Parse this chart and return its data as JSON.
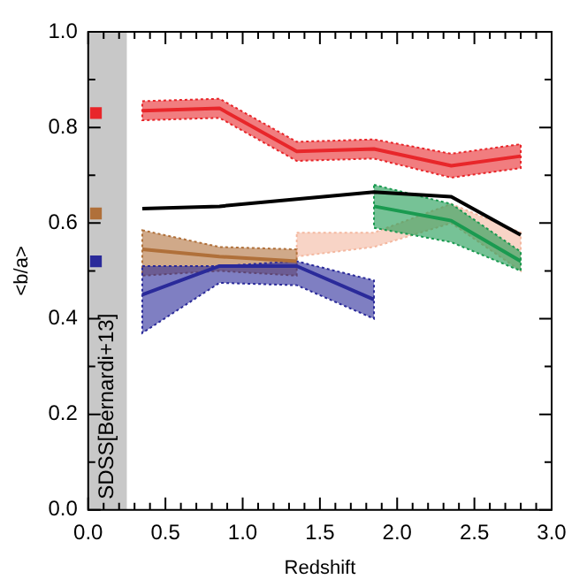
{
  "chart_data": {
    "type": "line",
    "xlabel": "Redshift",
    "ylabel": "<b/a>",
    "xlim": [
      0,
      3
    ],
    "ylim": [
      0,
      1
    ],
    "xticks": [
      {
        "value": 0,
        "label": "0.0"
      },
      0.5,
      {
        "value": 1,
        "label": "1.0"
      },
      1.5,
      {
        "value": 2,
        "label": "2.0"
      },
      2.5,
      {
        "value": 3,
        "label": "3.0"
      }
    ],
    "yticks": [
      {
        "value": 0,
        "label": "0.0"
      },
      0.2,
      0.4,
      0.6,
      0.8,
      {
        "value": 1,
        "label": "1.0"
      }
    ],
    "grid": false,
    "legend": false,
    "marker": "none",
    "line_style": "solid",
    "bands": [
      {
        "axis": "x",
        "from": 0,
        "to": 0.25,
        "label": "SDSS[Bernardi+13]",
        "color": "#c8c8c8"
      }
    ],
    "series": [
      {
        "color": "#e8262a",
        "x": [
          0.35,
          0.85,
          1.35,
          1.85,
          2.35,
          2.8
        ],
        "values": [
          0.835,
          0.84,
          0.75,
          0.755,
          0.72,
          0.74
        ],
        "lower": [
          0.815,
          0.82,
          0.73,
          0.735,
          0.695,
          0.715
        ],
        "upper": [
          0.855,
          0.86,
          0.77,
          0.775,
          0.745,
          0.765
        ]
      },
      {
        "color": "#f4b8a0",
        "x": [
          1.35,
          1.85,
          2.35,
          2.8
        ],
        "values": [
          null,
          null,
          null,
          null
        ],
        "lower": [
          0.53,
          0.55,
          0.6,
          0.5
        ],
        "upper": [
          0.58,
          0.58,
          0.64,
          0.58
        ]
      },
      {
        "color": "#b0703a",
        "x": [
          0.35,
          0.85,
          1.35
        ],
        "values": [
          0.545,
          0.53,
          0.52
        ],
        "lower": [
          0.49,
          0.5,
          0.49
        ],
        "upper": [
          0.585,
          0.55,
          0.545
        ]
      },
      {
        "color": "#2a2a9a",
        "x": [
          0.35,
          0.85,
          1.35,
          1.85
        ],
        "values": [
          0.45,
          0.51,
          0.51,
          0.44
        ],
        "lower": [
          0.37,
          0.475,
          0.47,
          0.4
        ],
        "upper": [
          0.51,
          0.51,
          0.52,
          0.48
        ]
      },
      {
        "color": "#1a9a50",
        "x": [
          1.85,
          2.35,
          2.8
        ],
        "values": [
          0.635,
          0.605,
          0.52
        ],
        "lower": [
          0.59,
          0.56,
          0.5
        ],
        "upper": [
          0.68,
          0.64,
          0.54
        ]
      },
      {
        "color": "#000000",
        "x": [
          0.35,
          0.85,
          1.35,
          1.85,
          2.35,
          2.8
        ],
        "values": [
          0.63,
          0.635,
          0.65,
          0.665,
          0.655,
          0.575
        ]
      },
      {
        "type": "scatter",
        "marker": "square",
        "color": "#e8262a",
        "x": [
          0.05
        ],
        "values": [
          0.83
        ]
      },
      {
        "type": "scatter",
        "marker": "square",
        "color": "#b0703a",
        "x": [
          0.05
        ],
        "values": [
          0.62
        ]
      },
      {
        "type": "scatter",
        "marker": "square",
        "color": "#2a2a9a",
        "x": [
          0.05
        ],
        "values": [
          0.52
        ]
      }
    ]
  }
}
